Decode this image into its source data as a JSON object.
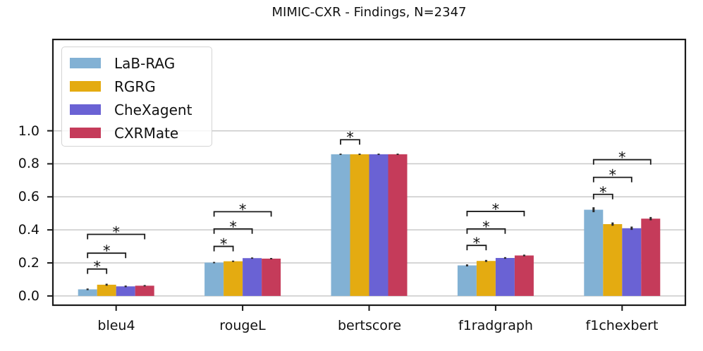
{
  "title": "MIMIC-CXR - Findings, N=2347",
  "chart_data": {
    "type": "bar",
    "title": "MIMIC-CXR - Findings, N=2347",
    "categories": [
      "bleu4",
      "rougeL",
      "bertscore",
      "f1radgraph",
      "f1chexbert"
    ],
    "series": [
      {
        "name": "LaB-RAG",
        "color": "#82B1D4",
        "values": [
          0.04,
          0.202,
          0.858,
          0.185,
          0.522
        ],
        "errors": [
          0.005,
          0.004,
          0.004,
          0.006,
          0.015
        ]
      },
      {
        "name": "RGRG",
        "color": "#E4AB11",
        "values": [
          0.068,
          0.21,
          0.858,
          0.212,
          0.435
        ],
        "errors": [
          0.006,
          0.004,
          0.004,
          0.006,
          0.01
        ]
      },
      {
        "name": "CheXagent",
        "color": "#6A62D4",
        "values": [
          0.058,
          0.229,
          0.858,
          0.23,
          0.41
        ],
        "errors": [
          0.005,
          0.004,
          0.004,
          0.005,
          0.01
        ]
      },
      {
        "name": "CXRMate",
        "color": "#C53B5A",
        "values": [
          0.062,
          0.226,
          0.858,
          0.245,
          0.468
        ],
        "errors": [
          0.004,
          0.004,
          0.004,
          0.005,
          0.01
        ]
      }
    ],
    "yticks": [
      "0.0",
      "0.2",
      "0.4",
      "0.6",
      "0.8",
      "1.0"
    ],
    "ylim": [
      -0.056,
      1.553
    ],
    "grid": true,
    "legend_position": "upper left",
    "significance_marker": "*",
    "significance_brackets": [
      {
        "group": 0,
        "category": "bleu4",
        "from": 0,
        "to": 1,
        "y": 0.163
      },
      {
        "group": 0,
        "category": "bleu4",
        "from": 0,
        "to": 2,
        "y": 0.259
      },
      {
        "group": 0,
        "category": "bleu4",
        "from": 0,
        "to": 3,
        "y": 0.373
      },
      {
        "group": 1,
        "category": "rougeL",
        "from": 0,
        "to": 1,
        "y": 0.3
      },
      {
        "group": 1,
        "category": "rougeL",
        "from": 0,
        "to": 2,
        "y": 0.406
      },
      {
        "group": 1,
        "category": "rougeL",
        "from": 0,
        "to": 3,
        "y": 0.51
      },
      {
        "group": 2,
        "category": "bertscore",
        "from": 0,
        "to": 1,
        "y": 0.946
      },
      {
        "group": 3,
        "category": "f1radgraph",
        "from": 0,
        "to": 1,
        "y": 0.306
      },
      {
        "group": 3,
        "category": "f1radgraph",
        "from": 0,
        "to": 2,
        "y": 0.406
      },
      {
        "group": 3,
        "category": "f1radgraph",
        "from": 0,
        "to": 3,
        "y": 0.512
      },
      {
        "group": 4,
        "category": "f1chexbert",
        "from": 0,
        "to": 1,
        "y": 0.615
      },
      {
        "group": 4,
        "category": "f1chexbert",
        "from": 0,
        "to": 2,
        "y": 0.718
      },
      {
        "group": 4,
        "category": "f1chexbert",
        "from": 0,
        "to": 3,
        "y": 0.825
      }
    ],
    "colors": {
      "grid": "#c9c9c9",
      "spine": "#1a1a1a",
      "error": "#2b2b2b",
      "text": "#111111"
    }
  }
}
